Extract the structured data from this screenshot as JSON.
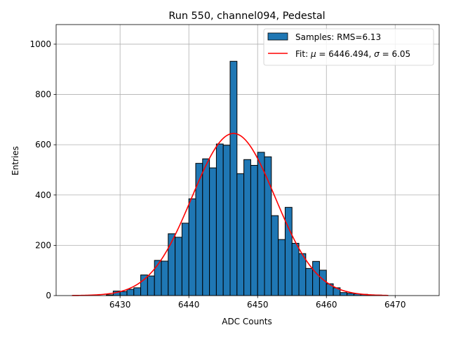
{
  "chart_data": {
    "type": "bar",
    "title": "Run 550, channel094, Pedestal",
    "xlabel": "ADC Counts",
    "ylabel": "Entries",
    "xlim": [
      6420.7,
      6476.4
    ],
    "ylim": [
      0,
      1078
    ],
    "grid": true,
    "legend_placement": "top-right",
    "x_ticks": [
      6430,
      6440,
      6450,
      6460,
      6470
    ],
    "y_ticks": [
      0,
      200,
      400,
      600,
      800,
      1000
    ],
    "histogram": {
      "name": "Samples: RMS=6.13",
      "bin_width": 1,
      "bin_edges_start": [
        6428,
        6429,
        6430,
        6431,
        6432,
        6433,
        6434,
        6435,
        6436,
        6437,
        6438,
        6439,
        6440,
        6441,
        6442,
        6443,
        6444,
        6445,
        6446,
        6447,
        6448,
        6449,
        6450,
        6451,
        6452,
        6453,
        6454,
        6455,
        6456,
        6457,
        6458,
        6459,
        6460,
        6461,
        6462,
        6463,
        6464,
        6465,
        6466,
        6467
      ],
      "counts": [
        3,
        18,
        16,
        25,
        31,
        82,
        78,
        140,
        137,
        246,
        232,
        288,
        385,
        526,
        544,
        508,
        603,
        598,
        932,
        485,
        541,
        518,
        570,
        552,
        318,
        223,
        351,
        208,
        167,
        108,
        136,
        101,
        47,
        31,
        12,
        9,
        7,
        5,
        3,
        2
      ],
      "color": "#1f77b4",
      "edge_color": "#000000"
    },
    "fit": {
      "name": "Fit: μ = 6446.494, σ = 6.05",
      "name_prefix": "Fit: ",
      "mu_label": "μ",
      "mu_text": " = 6446.494, ",
      "sigma_label": "σ",
      "sigma_text": " = 6.05",
      "mu": 6446.494,
      "sigma": 6.05,
      "peak": 645,
      "x_range": [
        6423,
        6469
      ],
      "color": "#ff0000"
    }
  }
}
